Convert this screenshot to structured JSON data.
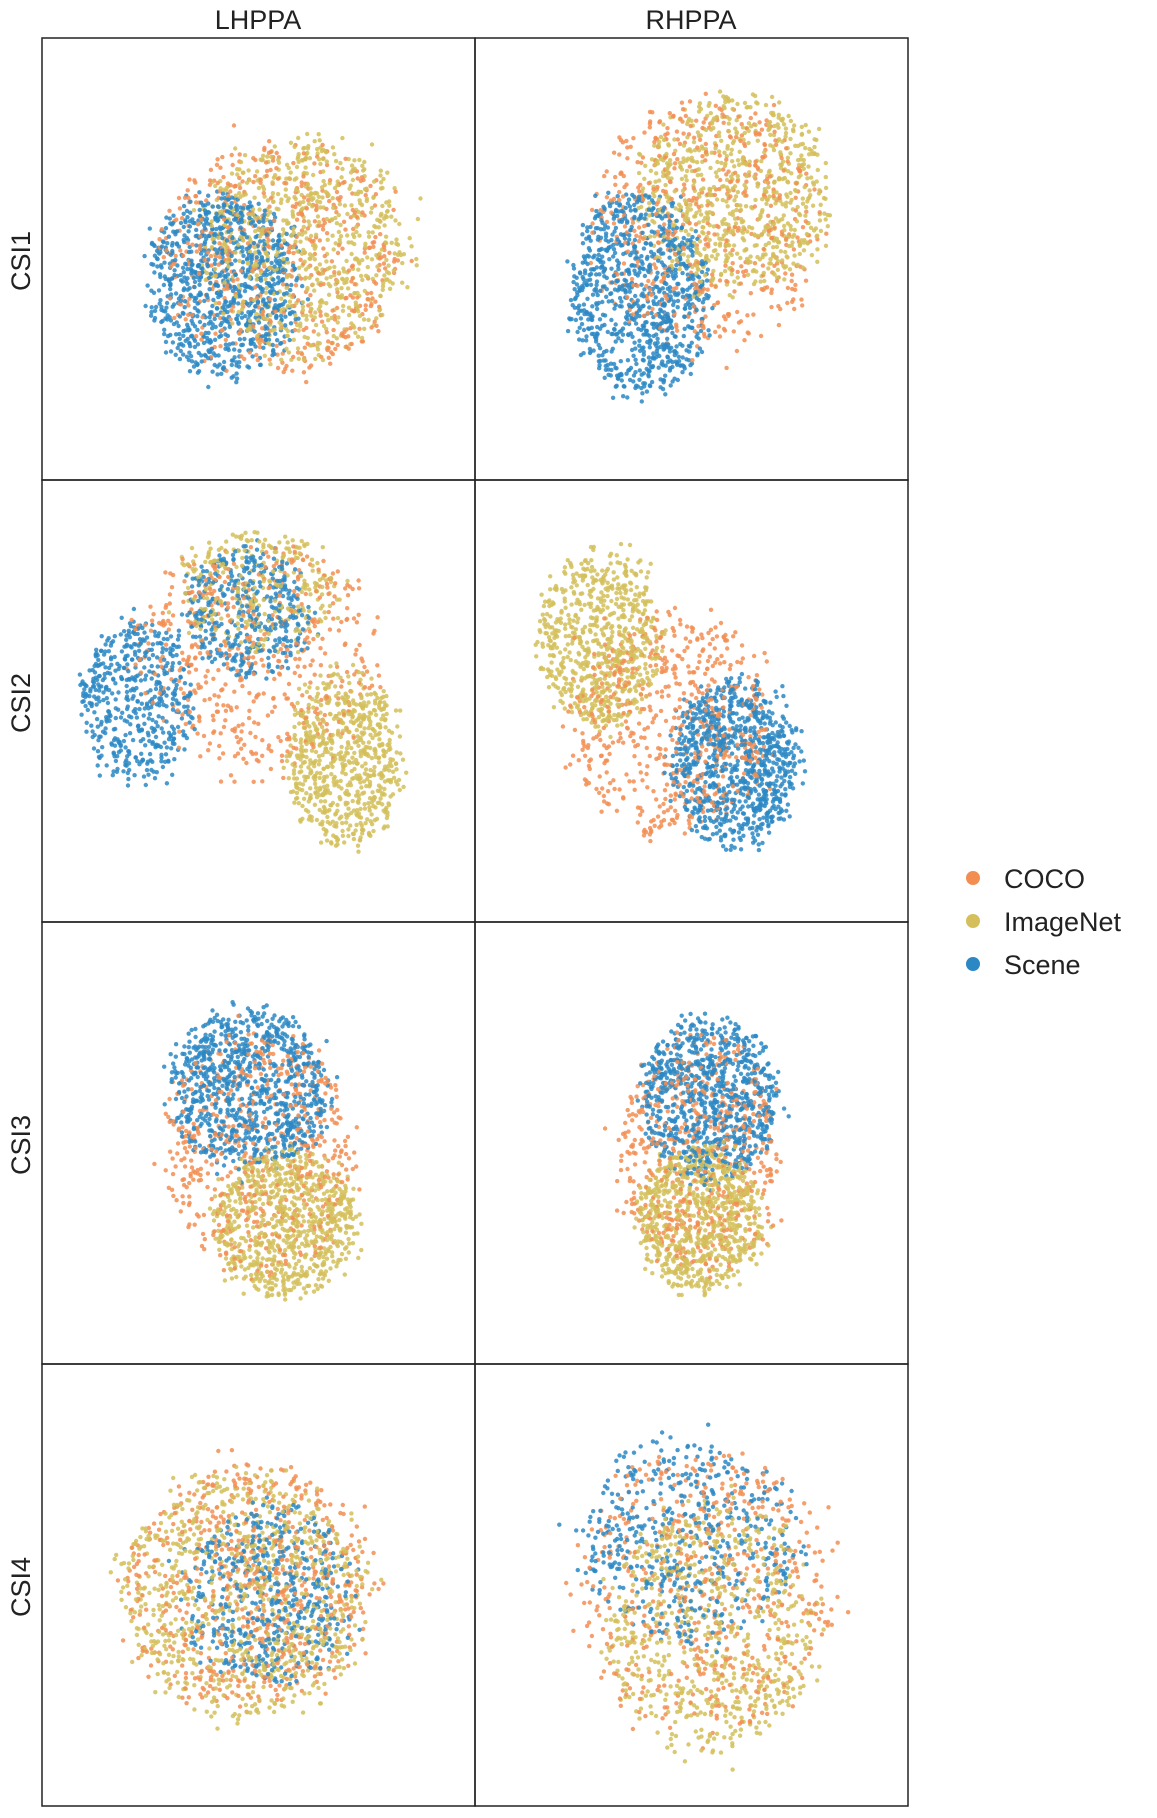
{
  "chart_data": {
    "type": "scatter",
    "columns": [
      "LHPPA",
      "RHPPA"
    ],
    "rows": [
      "CSI1",
      "CSI2",
      "CSI3",
      "CSI4"
    ],
    "grid": false,
    "legend_position": "right",
    "series": [
      {
        "name": "COCO",
        "color": "#f28e52"
      },
      {
        "name": "ImageNet",
        "color": "#d4bf5a"
      },
      {
        "name": "Scene",
        "color": "#2b88c4"
      }
    ],
    "panels": [
      {
        "row": "CSI1",
        "col": "LHPPA",
        "clusters": [
          {
            "series": "Scene",
            "cx": 0.42,
            "cy": 0.56,
            "rx": 0.19,
            "ry": 0.22,
            "count": 900
          },
          {
            "series": "ImageNet",
            "cx": 0.61,
            "cy": 0.47,
            "rx": 0.26,
            "ry": 0.27,
            "count": 750
          },
          {
            "series": "COCO",
            "cx": 0.55,
            "cy": 0.5,
            "rx": 0.3,
            "ry": 0.29,
            "count": 550
          }
        ]
      },
      {
        "row": "CSI1",
        "col": "RHPPA",
        "clusters": [
          {
            "series": "Scene",
            "cx": 0.38,
            "cy": 0.58,
            "rx": 0.17,
            "ry": 0.25,
            "count": 900
          },
          {
            "series": "ImageNet",
            "cx": 0.6,
            "cy": 0.35,
            "rx": 0.24,
            "ry": 0.24,
            "count": 750
          },
          {
            "series": "COCO",
            "cx": 0.54,
            "cy": 0.42,
            "rx": 0.28,
            "ry": 0.3,
            "count": 550
          }
        ]
      },
      {
        "row": "CSI2",
        "col": "LHPPA",
        "clusters": [
          {
            "series": "Scene",
            "cx": 0.22,
            "cy": 0.5,
            "rx": 0.14,
            "ry": 0.2,
            "count": 500
          },
          {
            "series": "Scene",
            "cx": 0.48,
            "cy": 0.3,
            "rx": 0.16,
            "ry": 0.16,
            "count": 400
          },
          {
            "series": "ImageNet",
            "cx": 0.7,
            "cy": 0.63,
            "rx": 0.14,
            "ry": 0.22,
            "count": 700
          },
          {
            "series": "ImageNet",
            "cx": 0.5,
            "cy": 0.25,
            "rx": 0.2,
            "ry": 0.15,
            "count": 300
          },
          {
            "series": "COCO",
            "cx": 0.5,
            "cy": 0.4,
            "rx": 0.3,
            "ry": 0.28,
            "count": 500
          }
        ]
      },
      {
        "row": "CSI2",
        "col": "RHPPA",
        "clusters": [
          {
            "series": "ImageNet",
            "cx": 0.29,
            "cy": 0.36,
            "rx": 0.15,
            "ry": 0.22,
            "count": 700
          },
          {
            "series": "Scene",
            "cx": 0.6,
            "cy": 0.64,
            "rx": 0.16,
            "ry": 0.2,
            "count": 900
          },
          {
            "series": "COCO",
            "cx": 0.45,
            "cy": 0.55,
            "rx": 0.25,
            "ry": 0.27,
            "count": 600
          }
        ]
      },
      {
        "row": "CSI3",
        "col": "LHPPA",
        "clusters": [
          {
            "series": "Scene",
            "cx": 0.48,
            "cy": 0.38,
            "rx": 0.2,
            "ry": 0.2,
            "count": 900
          },
          {
            "series": "ImageNet",
            "cx": 0.56,
            "cy": 0.68,
            "rx": 0.18,
            "ry": 0.18,
            "count": 800
          },
          {
            "series": "COCO",
            "cx": 0.5,
            "cy": 0.52,
            "rx": 0.24,
            "ry": 0.3,
            "count": 550
          }
        ]
      },
      {
        "row": "CSI3",
        "col": "RHPPA",
        "clusters": [
          {
            "series": "Scene",
            "cx": 0.54,
            "cy": 0.4,
            "rx": 0.17,
            "ry": 0.2,
            "count": 850
          },
          {
            "series": "ImageNet",
            "cx": 0.52,
            "cy": 0.67,
            "rx": 0.16,
            "ry": 0.18,
            "count": 800
          },
          {
            "series": "COCO",
            "cx": 0.52,
            "cy": 0.52,
            "rx": 0.2,
            "ry": 0.29,
            "count": 550
          }
        ]
      },
      {
        "row": "CSI4",
        "col": "LHPPA",
        "clusters": [
          {
            "series": "Scene",
            "cx": 0.53,
            "cy": 0.52,
            "rx": 0.22,
            "ry": 0.22,
            "count": 500
          },
          {
            "series": "ImageNet",
            "cx": 0.46,
            "cy": 0.52,
            "rx": 0.31,
            "ry": 0.3,
            "count": 850
          },
          {
            "series": "COCO",
            "cx": 0.48,
            "cy": 0.5,
            "rx": 0.31,
            "ry": 0.3,
            "count": 650
          }
        ]
      },
      {
        "row": "CSI4",
        "col": "RHPPA",
        "clusters": [
          {
            "series": "Scene",
            "cx": 0.5,
            "cy": 0.4,
            "rx": 0.27,
            "ry": 0.25,
            "count": 500
          },
          {
            "series": "ImageNet",
            "cx": 0.55,
            "cy": 0.6,
            "rx": 0.27,
            "ry": 0.3,
            "count": 650
          },
          {
            "series": "COCO",
            "cx": 0.53,
            "cy": 0.52,
            "rx": 0.32,
            "ry": 0.35,
            "count": 550
          }
        ]
      }
    ]
  }
}
